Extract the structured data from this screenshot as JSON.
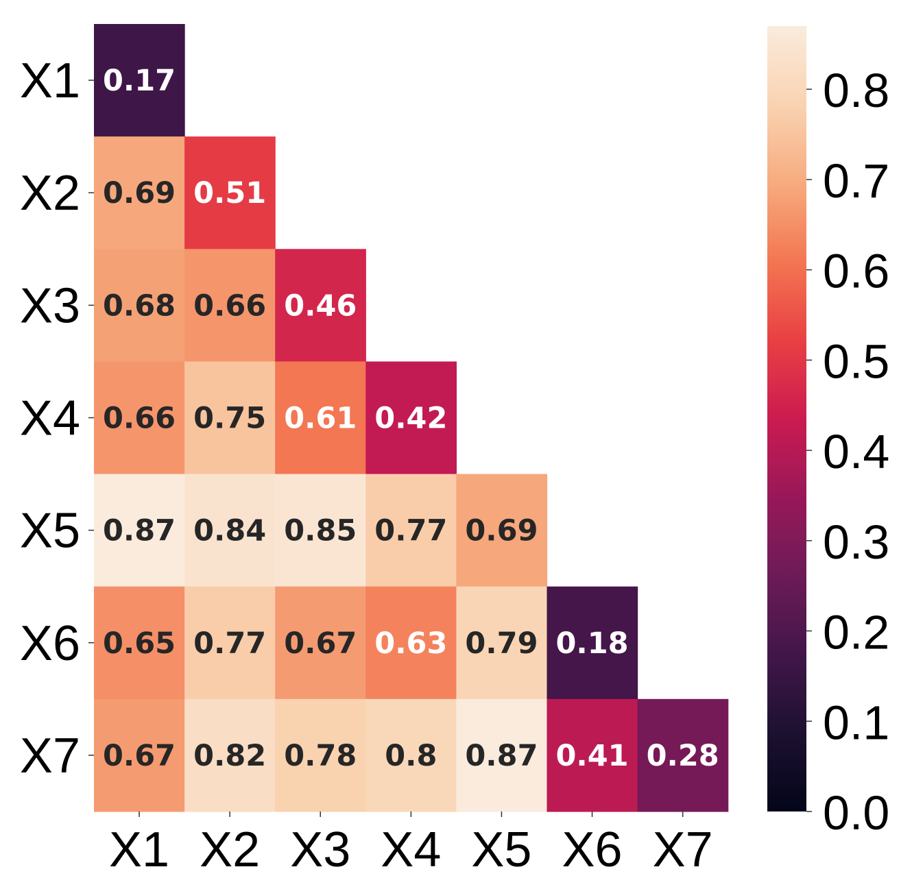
{
  "chart_data": {
    "type": "heatmap",
    "title": "",
    "xlabel": "",
    "ylabel": "",
    "rows": [
      "X1",
      "X2",
      "X3",
      "X4",
      "X5",
      "X6",
      "X7"
    ],
    "cols": [
      "X1",
      "X2",
      "X3",
      "X4",
      "X5",
      "X6",
      "X7"
    ],
    "mask": "upper-triangle",
    "values": [
      [
        0.17,
        null,
        null,
        null,
        null,
        null,
        null
      ],
      [
        0.69,
        0.51,
        null,
        null,
        null,
        null,
        null
      ],
      [
        0.68,
        0.66,
        0.46,
        null,
        null,
        null,
        null
      ],
      [
        0.66,
        0.75,
        0.61,
        0.42,
        null,
        null,
        null
      ],
      [
        0.87,
        0.84,
        0.85,
        0.77,
        0.69,
        null,
        null
      ],
      [
        0.65,
        0.77,
        0.67,
        0.63,
        0.79,
        0.18,
        null
      ],
      [
        0.67,
        0.82,
        0.78,
        0.8,
        0.87,
        0.41,
        0.28
      ]
    ],
    "annotations": [
      [
        "0.17",
        null,
        null,
        null,
        null,
        null,
        null
      ],
      [
        "0.69",
        "0.51",
        null,
        null,
        null,
        null,
        null
      ],
      [
        "0.68",
        "0.66",
        "0.46",
        null,
        null,
        null,
        null
      ],
      [
        "0.66",
        "0.75",
        "0.61",
        "0.42",
        null,
        null,
        null
      ],
      [
        "0.87",
        "0.84",
        "0.85",
        "0.77",
        "0.69",
        null,
        null
      ],
      [
        "0.65",
        "0.77",
        "0.67",
        "0.63",
        "0.79",
        "0.18",
        null
      ],
      [
        "0.67",
        "0.82",
        "0.78",
        "0.8",
        "0.87",
        "0.41",
        "0.28"
      ]
    ],
    "colorbar": {
      "range": [
        0.0,
        0.87
      ],
      "ticks": [
        "0.0",
        "0.1",
        "0.2",
        "0.3",
        "0.4",
        "0.5",
        "0.6",
        "0.7",
        "0.8"
      ],
      "colormap": "rocket"
    },
    "legend": "right",
    "grid": false
  }
}
